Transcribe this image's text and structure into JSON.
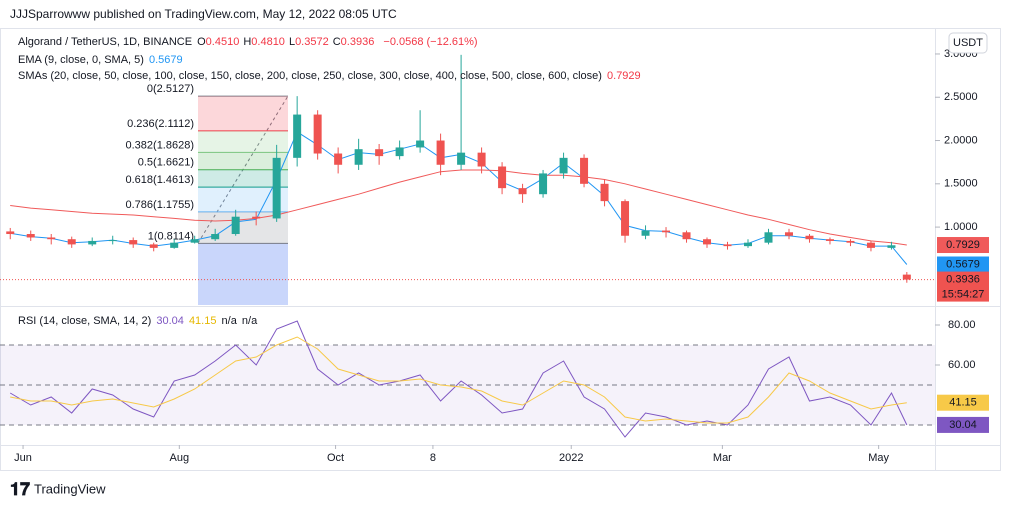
{
  "header": {
    "published": "JJJSparrowww published on TradingView.com, May 12, 2022 08:05 UTC"
  },
  "footer": {
    "brand": "TradingView"
  },
  "chart_data": [
    {
      "type": "candlestick",
      "legend": {
        "symbol": "Algorand / TetherUS, 1D, BINANCE",
        "ohlc": [
          {
            "key": "O",
            "value": "0.4510"
          },
          {
            "key": "H",
            "value": "0.4810"
          },
          {
            "key": "L",
            "value": "0.3572"
          },
          {
            "key": "C",
            "value": "0.3936"
          }
        ],
        "change": "−0.0568 (−12.61%)"
      },
      "currency": "USDT",
      "countdown": "15:54:27",
      "up_color": "#26a69a",
      "down_color": "#ef5350",
      "x": [
        0,
        8,
        16,
        24,
        32,
        40,
        48,
        56,
        64,
        72,
        80,
        88,
        96,
        104,
        112,
        120,
        128,
        136,
        144,
        152,
        160,
        168,
        176,
        184,
        192,
        200,
        208,
        216,
        224,
        232,
        240,
        248,
        256,
        264,
        272,
        280,
        288,
        296,
        304,
        312,
        320,
        328,
        336,
        344,
        350
      ],
      "open": [
        0.95,
        0.92,
        0.88,
        0.86,
        0.8,
        0.84,
        0.85,
        0.8,
        0.76,
        0.82,
        0.86,
        0.92,
        1.12,
        1.1,
        1.8,
        2.3,
        1.85,
        1.72,
        1.9,
        1.82,
        1.92,
        2.0,
        1.72,
        1.86,
        1.7,
        1.45,
        1.38,
        1.62,
        1.8,
        1.5,
        1.3,
        0.9,
        0.96,
        0.94,
        0.86,
        0.8,
        0.78,
        0.82,
        0.94,
        0.9,
        0.86,
        0.84,
        0.82,
        0.76,
        0.451
      ],
      "high": [
        0.99,
        0.96,
        0.92,
        0.89,
        0.88,
        0.9,
        0.88,
        0.82,
        0.86,
        0.9,
        0.98,
        1.2,
        1.18,
        1.95,
        2.5127,
        2.35,
        1.92,
        2.02,
        1.96,
        2.0,
        2.35,
        2.08,
        2.99,
        1.92,
        1.75,
        1.5,
        1.66,
        1.86,
        1.84,
        1.55,
        1.32,
        1.02,
        1.0,
        0.96,
        0.88,
        0.83,
        0.86,
        0.98,
        0.98,
        0.92,
        0.88,
        0.86,
        0.84,
        0.83,
        0.481
      ],
      "low": [
        0.86,
        0.84,
        0.8,
        0.76,
        0.78,
        0.8,
        0.76,
        0.72,
        0.75,
        0.81,
        0.84,
        0.9,
        1.02,
        1.06,
        1.7,
        1.78,
        1.62,
        1.66,
        1.72,
        1.78,
        1.86,
        1.6,
        1.66,
        1.62,
        1.38,
        1.28,
        1.34,
        1.56,
        1.46,
        1.24,
        0.82,
        0.86,
        0.88,
        0.82,
        0.76,
        0.74,
        0.76,
        0.8,
        0.86,
        0.82,
        0.8,
        0.78,
        0.72,
        0.74,
        0.3572
      ],
      "close": [
        0.92,
        0.88,
        0.86,
        0.8,
        0.84,
        0.85,
        0.8,
        0.76,
        0.82,
        0.86,
        0.92,
        1.12,
        1.1,
        1.8,
        2.3,
        1.85,
        1.72,
        1.9,
        1.82,
        1.92,
        2.0,
        1.72,
        1.86,
        1.7,
        1.45,
        1.38,
        1.62,
        1.8,
        1.5,
        1.3,
        0.9,
        0.96,
        0.94,
        0.86,
        0.8,
        0.78,
        0.82,
        0.94,
        0.9,
        0.86,
        0.84,
        0.82,
        0.76,
        0.79,
        0.3936
      ],
      "overlays": [
        {
          "label": "EMA (9, close, 0, SMA, 5)",
          "value_label": "0.5679",
          "color": "#2196f3",
          "values": [
            0.93,
            0.89,
            0.87,
            0.82,
            0.83,
            0.85,
            0.81,
            0.78,
            0.81,
            0.85,
            0.9,
            1.06,
            1.09,
            1.55,
            2.1,
            1.95,
            1.78,
            1.86,
            1.84,
            1.9,
            1.96,
            1.8,
            1.84,
            1.74,
            1.52,
            1.42,
            1.56,
            1.74,
            1.56,
            1.36,
            1.02,
            0.96,
            0.95,
            0.88,
            0.82,
            0.79,
            0.81,
            0.9,
            0.9,
            0.87,
            0.85,
            0.83,
            0.78,
            0.78,
            0.5679
          ]
        },
        {
          "label": "SMAs (20, close, 50, close, 100, close, 150, close, 200, close, 250, close, 300, close, 400, close, 500, close, 600, close)",
          "value_label": "0.7929",
          "color": "#f05a5a",
          "values": [
            1.25,
            1.22,
            1.2,
            1.18,
            1.16,
            1.15,
            1.14,
            1.12,
            1.1,
            1.08,
            1.07,
            1.08,
            1.1,
            1.14,
            1.2,
            1.26,
            1.32,
            1.38,
            1.45,
            1.52,
            1.58,
            1.64,
            1.66,
            1.66,
            1.65,
            1.62,
            1.6,
            1.6,
            1.58,
            1.55,
            1.5,
            1.44,
            1.38,
            1.32,
            1.26,
            1.2,
            1.14,
            1.09,
            1.03,
            0.97,
            0.92,
            0.88,
            0.84,
            0.82,
            0.7929
          ]
        }
      ],
      "fibonacci": [
        {
          "value": 2.5127,
          "label": "0(2.5127)",
          "color": "#787b86"
        },
        {
          "value": 2.1112,
          "label": "0.236(2.1112)",
          "color": "#f23645"
        },
        {
          "value": 1.8628,
          "label": "0.382(1.8628)",
          "color": "#81c784"
        },
        {
          "value": 1.6621,
          "label": "0.5(1.6621)",
          "color": "#4caf50"
        },
        {
          "value": 1.4613,
          "label": "0.618(1.4613)",
          "color": "#089981"
        },
        {
          "value": 1.1755,
          "label": "0.786(1.1755)",
          "color": "#64b5f6"
        },
        {
          "value": 0.8114,
          "label": "1(0.8114)",
          "color": "#787b86"
        }
      ],
      "xlim": [
        -4,
        361
      ],
      "ylim": [
        0.1,
        3.3
      ],
      "yticks": [
        {
          "value": 1,
          "label": "1.0000"
        },
        {
          "value": 1.5,
          "label": "1.5000"
        },
        {
          "value": 2,
          "label": "2.0000"
        },
        {
          "value": 2.5,
          "label": "2.5000"
        },
        {
          "value": 3,
          "label": "3.0000"
        }
      ]
    },
    {
      "type": "line",
      "legend": {
        "label": "RSI (14, close, SMA, 14, 2)",
        "na": [
          "n/a",
          "n/a"
        ]
      },
      "x": [
        0,
        8,
        16,
        24,
        32,
        40,
        48,
        56,
        64,
        72,
        80,
        88,
        96,
        104,
        112,
        120,
        128,
        136,
        144,
        152,
        160,
        168,
        176,
        184,
        192,
        200,
        208,
        216,
        224,
        232,
        240,
        248,
        256,
        264,
        272,
        280,
        288,
        296,
        304,
        312,
        320,
        328,
        336,
        344,
        350
      ],
      "series": [
        {
          "value_label": "30.04",
          "color": "#7e57c2",
          "values": [
            46,
            40,
            44,
            36,
            48,
            45,
            38,
            34,
            52,
            55,
            62,
            70,
            60,
            78,
            82,
            58,
            50,
            56,
            50,
            52,
            55,
            42,
            52,
            45,
            36,
            38,
            56,
            62,
            44,
            38,
            24,
            36,
            34,
            30,
            32,
            30,
            40,
            58,
            64,
            42,
            44,
            40,
            30,
            46,
            30.04
          ]
        },
        {
          "value_label": "41.15",
          "color": "#f7c948",
          "values": [
            44,
            42,
            42,
            40,
            42,
            43,
            41,
            39,
            43,
            48,
            55,
            62,
            64,
            70,
            74,
            68,
            58,
            55,
            52,
            52,
            53,
            50,
            49,
            47,
            42,
            40,
            46,
            52,
            50,
            44,
            34,
            32,
            33,
            32,
            31,
            31,
            34,
            44,
            56,
            52,
            46,
            42,
            38,
            40,
            41.15
          ]
        }
      ],
      "bands": [
        70,
        50,
        30
      ],
      "xlim": [
        -4,
        361
      ],
      "ylim": [
        20,
        86.5
      ],
      "yticks": [
        {
          "value": 60,
          "label": "60.00"
        },
        {
          "value": 80,
          "label": "80.00"
        }
      ],
      "xticks": [
        {
          "value": 5,
          "label": "Jun"
        },
        {
          "value": 66,
          "label": "Aug"
        },
        {
          "value": 127,
          "label": "Oct"
        },
        {
          "value": 165,
          "label": "8"
        },
        {
          "value": 219,
          "label": "2022"
        },
        {
          "value": 278,
          "label": "Mar"
        },
        {
          "value": 339,
          "label": "May"
        }
      ]
    }
  ]
}
